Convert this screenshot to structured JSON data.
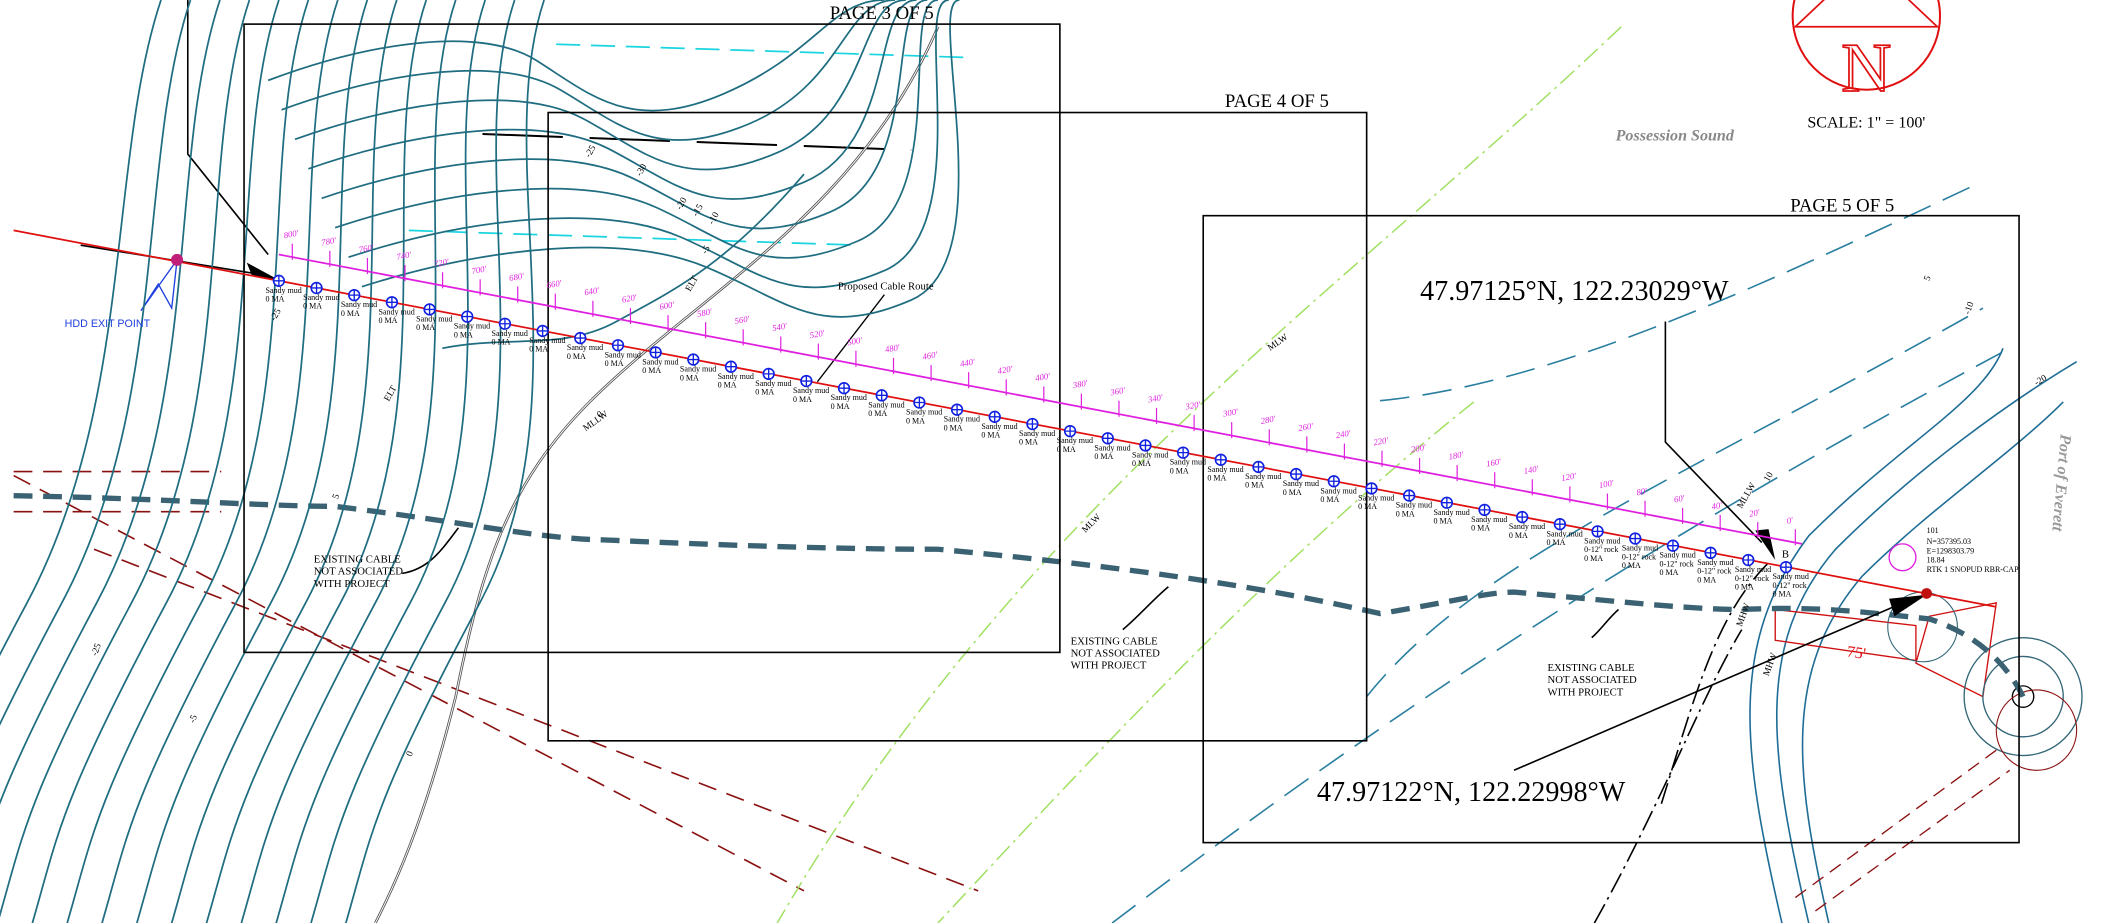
{
  "page_labels": [
    "PAGE 3 OF 5",
    "PAGE 4 OF 5",
    "PAGE 5 OF 5"
  ],
  "north_arrow": {
    "letter": "N",
    "scale": "SCALE: 1\" = 100'"
  },
  "water_labels": [
    "Possession Sound",
    "Port of Everett"
  ],
  "coordinates": [
    "47.97125°N, 122.23029°W",
    "47.97122°N, 122.22998°W"
  ],
  "route_label": "Proposed Cable Route",
  "hdd_label": "HDD EXIT POINT",
  "existing_cable_notes": [
    [
      "EXISTING CABLE",
      "NOT ASSOCIATED",
      "WITH PROJECT"
    ],
    [
      "EXISTING CABLE",
      "NOT ASSOCIATED",
      "WITH PROJECT"
    ],
    [
      "EXISTING CABLE",
      "NOT ASSOCIATED",
      "WITH PROJECT"
    ]
  ],
  "stations": [
    "800'",
    "780'",
    "760'",
    "740'",
    "720'",
    "700'",
    "680'",
    "660'",
    "640'",
    "620'",
    "600'",
    "580'",
    "560'",
    "540'",
    "520'",
    "500'",
    "480'",
    "460'",
    "440'",
    "420'",
    "400'",
    "380'",
    "360'",
    "340'",
    "320'",
    "300'",
    "280'",
    "260'",
    "240'",
    "220'",
    "200'",
    "180'",
    "160'",
    "140'",
    "120'",
    "100'",
    "80'",
    "60'",
    "40'",
    "20'",
    "0'"
  ],
  "samples": [
    [
      "Sandy mud",
      "0 MA"
    ],
    [
      "Sandy mud",
      "0 MA"
    ],
    [
      "Sandy mud",
      "0 MA"
    ],
    [
      "Sandy mud",
      "0 MA"
    ],
    [
      "Sandy mud",
      "0 MA"
    ],
    [
      "Sandy mud",
      "0 MA"
    ],
    [
      "Sandy mud",
      "0 MA"
    ],
    [
      "Sandy mud",
      "0 MA"
    ],
    [
      "Sandy mud",
      "0 MA"
    ],
    [
      "Sandy mud",
      "0 MA"
    ],
    [
      "Sandy mud",
      "0 MA"
    ],
    [
      "Sandy mud",
      "0 MA"
    ],
    [
      "Sandy mud",
      "0 MA"
    ],
    [
      "Sandy mud",
      "0 MA"
    ],
    [
      "Sandy mud",
      "0 MA"
    ],
    [
      "Sandy mud",
      "0 MA"
    ],
    [
      "Sandy mud",
      "0 MA"
    ],
    [
      "Sandy mud",
      "0 MA"
    ],
    [
      "Sandy mud",
      "0 MA"
    ],
    [
      "Sandy mud",
      "0 MA"
    ],
    [
      "Sandy mud",
      "0 MA"
    ],
    [
      "Sandy mud",
      "0 MA"
    ],
    [
      "Sandy mud",
      "0 MA"
    ],
    [
      "Sandy mud",
      "0 MA"
    ],
    [
      "Sandy mud",
      "0 MA"
    ],
    [
      "Sandy mud",
      "0 MA"
    ],
    [
      "Sandy mud",
      "0 MA"
    ],
    [
      "Sandy mud",
      "0 MA"
    ],
    [
      "Sandy mud",
      "0 MA"
    ],
    [
      "Sandy mud",
      "0 MA"
    ],
    [
      "Sandy mud",
      "0 MA"
    ],
    [
      "Sandy mud",
      "0 MA"
    ],
    [
      "Sandy mud",
      "0 MA"
    ],
    [
      "Sandy mud",
      "0 MA"
    ],
    [
      "Sandy mud",
      "0 MA"
    ],
    [
      "Sandy mud",
      "0-12\" rock",
      "0 MA"
    ],
    [
      "Sandy mud",
      "0-12\" rock",
      "0 MA"
    ],
    [
      "Sandy mud",
      "0-12\" rock",
      "0 MA"
    ],
    [
      "Sandy mud",
      "0-12\" rock",
      "0 MA"
    ],
    [
      "Sandy mud",
      "0-12\" rock",
      "0 MA"
    ],
    [
      "Sandy mud",
      "0-12\" rock",
      "0 MA"
    ]
  ],
  "contour_labels": [
    "-25",
    "-30",
    "-25",
    "-20",
    "-15",
    "-10",
    "-5",
    "0",
    "5",
    "-25",
    "-5",
    "0",
    "5",
    "-10",
    "-20",
    "10"
  ],
  "line_labels": [
    "MLLW",
    "MLLW",
    "ELT",
    "ELT",
    "MLW",
    "MLW",
    "MHW",
    "MHW"
  ],
  "survey_point": {
    "id": "101",
    "lines": [
      "N=357395.03",
      "E=1298303.79",
      "18.84",
      "RTK 1 SNOPUD RBR-CAP"
    ]
  },
  "setback": "75'",
  "marker": "B"
}
